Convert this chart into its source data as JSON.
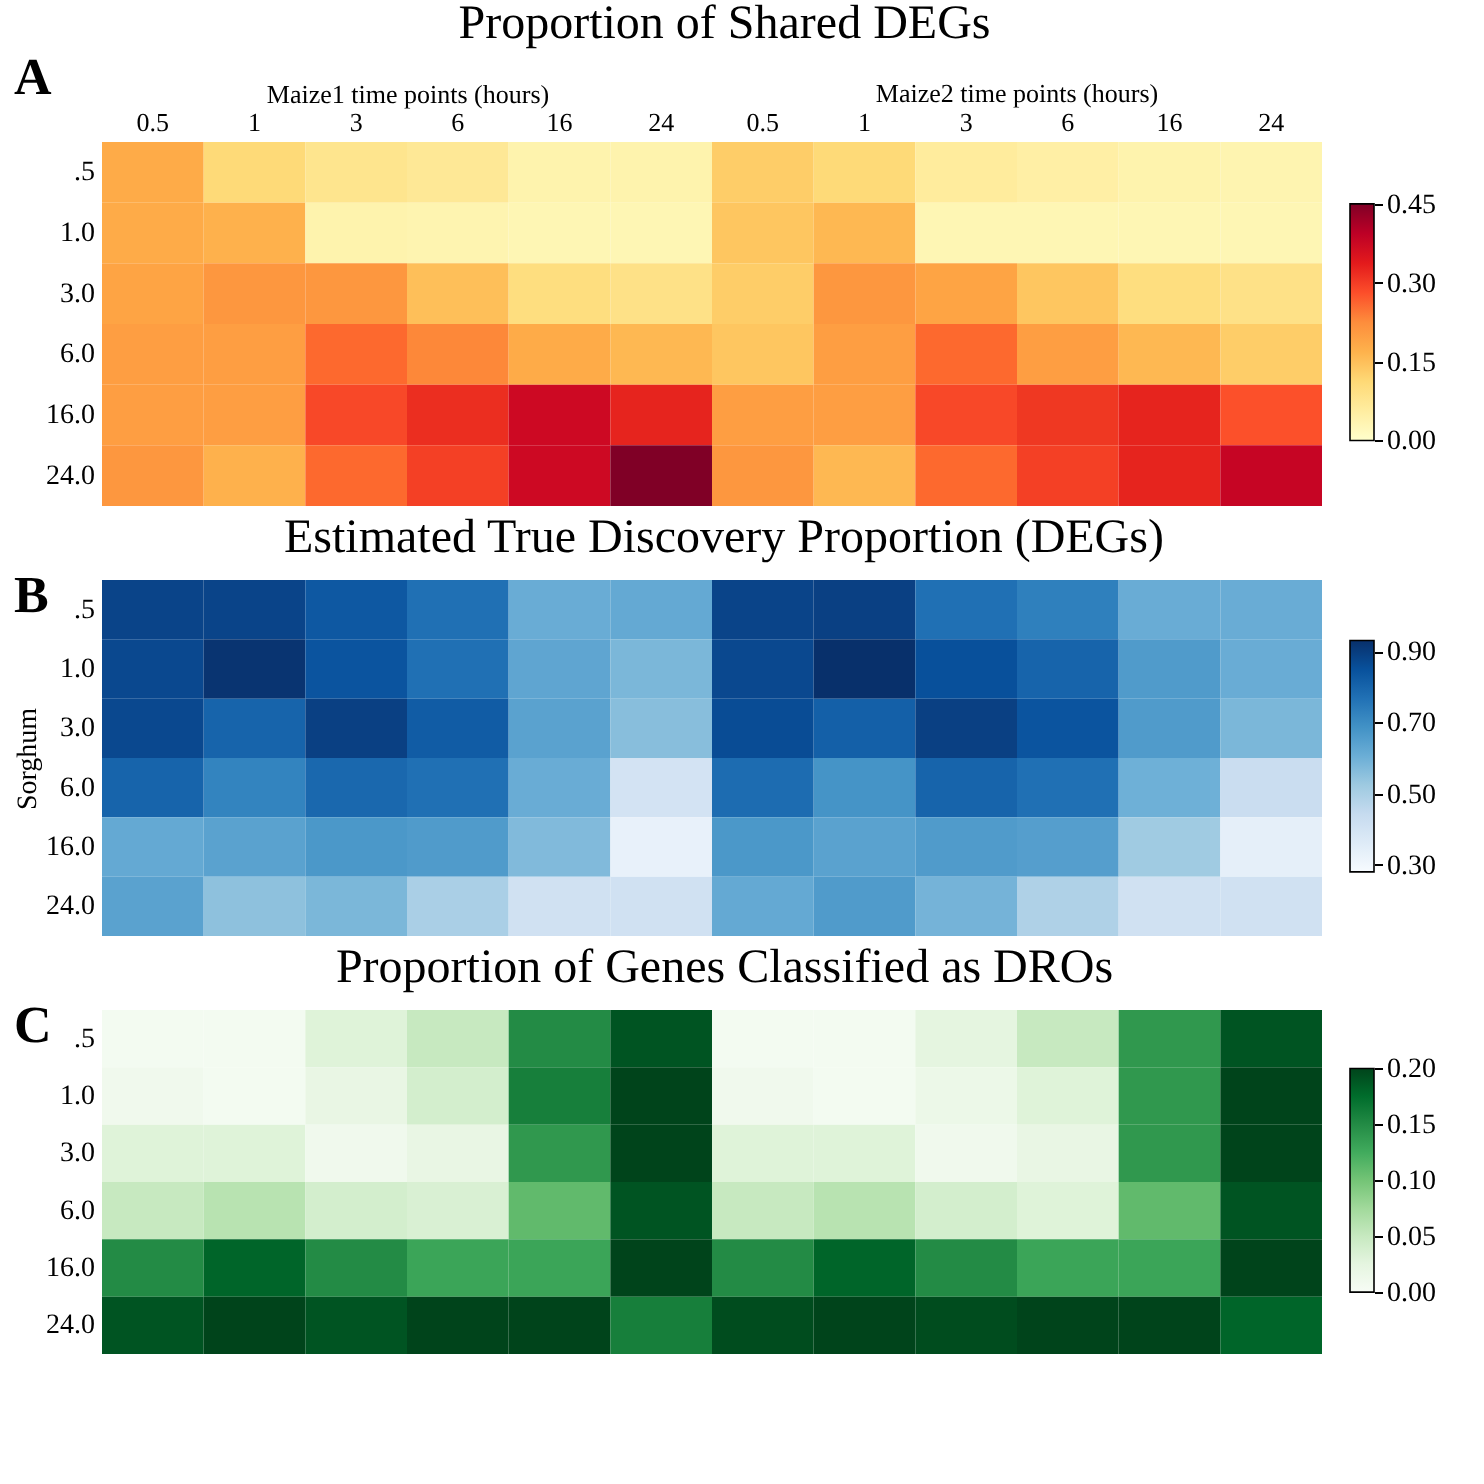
{
  "chart_data": [
    {
      "type": "heatmap",
      "title": "Proportion of Shared DEGs",
      "xlabel": "Maize1 time points (hours)",
      "annotations": [
        "A",
        "Maize2 time points (hours)"
      ],
      "categories": [
        "0.5",
        "1",
        "3",
        "6",
        "16",
        "24",
        "0.5",
        "1",
        "3",
        "6",
        "16",
        "24"
      ],
      "y_categories": [
        ".5",
        "1.0",
        "3.0",
        "6.0",
        "16.0",
        "24.0"
      ],
      "cells": [
        [
          0.18,
          0.11,
          0.08,
          0.07,
          0.04,
          0.04,
          0.13,
          0.11,
          0.06,
          0.05,
          0.04,
          0.035
        ],
        [
          0.18,
          0.17,
          0.04,
          0.035,
          0.03,
          0.03,
          0.14,
          0.16,
          0.03,
          0.03,
          0.03,
          0.03
        ],
        [
          0.19,
          0.21,
          0.21,
          0.15,
          0.1,
          0.09,
          0.13,
          0.21,
          0.19,
          0.14,
          0.1,
          0.09
        ],
        [
          0.2,
          0.2,
          0.26,
          0.23,
          0.18,
          0.16,
          0.14,
          0.2,
          0.26,
          0.2,
          0.16,
          0.13
        ],
        [
          0.2,
          0.2,
          0.29,
          0.32,
          0.37,
          0.33,
          0.2,
          0.2,
          0.29,
          0.31,
          0.33,
          0.28
        ],
        [
          0.21,
          0.17,
          0.26,
          0.3,
          0.37,
          0.45,
          0.21,
          0.16,
          0.26,
          0.3,
          0.33,
          0.38
        ]
      ],
      "clim": [
        0,
        0.45
      ],
      "cticks": [
        {
          "value": 0,
          "label": "0.00"
        },
        {
          "value": 0.15,
          "label": "0.15"
        },
        {
          "value": 0.3,
          "label": "0.30"
        },
        {
          "value": 0.45,
          "label": "0.45"
        }
      ],
      "colors": [
        "#ffffcc",
        "#ffeda0",
        "#fed976",
        "#feb24c",
        "#fd8d3c",
        "#fc4e2a",
        "#e31a1c",
        "#bd0026",
        "#800026"
      ]
    },
    {
      "type": "heatmap",
      "title": "Estimated True Discovery Proportion (DEGs)",
      "ylabel": "Sorghum",
      "annotations": [
        "B"
      ],
      "tick_labels": "y",
      "categories": [
        "0.5",
        "1",
        "3",
        "6",
        "16",
        "24",
        "0.5",
        "1",
        "3",
        "6",
        "16",
        "24"
      ],
      "y_categories": [
        ".5",
        "1.0",
        "3.0",
        "6.0",
        "16.0",
        "24.0"
      ],
      "cells": [
        [
          0.88,
          0.88,
          0.83,
          0.77,
          0.61,
          0.62,
          0.88,
          0.89,
          0.77,
          0.73,
          0.61,
          0.61
        ],
        [
          0.87,
          0.92,
          0.84,
          0.77,
          0.63,
          0.58,
          0.87,
          0.93,
          0.85,
          0.8,
          0.66,
          0.61
        ],
        [
          0.87,
          0.8,
          0.89,
          0.82,
          0.64,
          0.56,
          0.86,
          0.81,
          0.89,
          0.84,
          0.66,
          0.58
        ],
        [
          0.8,
          0.72,
          0.79,
          0.77,
          0.61,
          0.4,
          0.78,
          0.68,
          0.8,
          0.77,
          0.6,
          0.43
        ],
        [
          0.62,
          0.64,
          0.67,
          0.66,
          0.57,
          0.33,
          0.67,
          0.64,
          0.66,
          0.65,
          0.52,
          0.34
        ],
        [
          0.64,
          0.55,
          0.58,
          0.5,
          0.41,
          0.41,
          0.62,
          0.66,
          0.59,
          0.49,
          0.41,
          0.41
        ]
      ],
      "clim": [
        0.28,
        0.93
      ],
      "cticks": [
        {
          "value": 0.3,
          "label": "0.30"
        },
        {
          "value": 0.5,
          "label": "0.50"
        },
        {
          "value": 0.7,
          "label": "0.70"
        },
        {
          "value": 0.9,
          "label": "0.90"
        }
      ],
      "colors": [
        "#f7fbff",
        "#deebf7",
        "#c6dbef",
        "#9ecae1",
        "#6baed6",
        "#4292c6",
        "#2171b5",
        "#08519c",
        "#08306b"
      ]
    },
    {
      "type": "heatmap",
      "title": "Proportion of Genes Classified as DROs",
      "annotations": [
        "C"
      ],
      "tick_labels": "y",
      "categories": [
        "0.5",
        "1",
        "3",
        "6",
        "16",
        "24",
        "0.5",
        "1",
        "3",
        "6",
        "16",
        "24"
      ],
      "y_categories": [
        ".5",
        "1.0",
        "3.0",
        "6.0",
        "16.0",
        "24.0"
      ],
      "cells": [
        [
          0.005,
          0.005,
          0.03,
          0.05,
          0.15,
          0.19,
          0.005,
          0.005,
          0.025,
          0.05,
          0.14,
          0.19
        ],
        [
          0.01,
          0.005,
          0.02,
          0.04,
          0.16,
          0.2,
          0.01,
          0.005,
          0.015,
          0.03,
          0.14,
          0.2
        ],
        [
          0.03,
          0.03,
          0.01,
          0.02,
          0.14,
          0.2,
          0.03,
          0.03,
          0.01,
          0.02,
          0.14,
          0.2
        ],
        [
          0.05,
          0.06,
          0.04,
          0.035,
          0.11,
          0.19,
          0.05,
          0.06,
          0.04,
          0.03,
          0.11,
          0.19
        ],
        [
          0.15,
          0.18,
          0.15,
          0.13,
          0.13,
          0.2,
          0.15,
          0.18,
          0.15,
          0.13,
          0.13,
          0.2
        ],
        [
          0.19,
          0.2,
          0.19,
          0.2,
          0.2,
          0.16,
          0.195,
          0.2,
          0.195,
          0.2,
          0.2,
          0.18
        ]
      ],
      "clim": [
        0,
        0.2
      ],
      "cticks": [
        {
          "value": 0,
          "label": "0.00"
        },
        {
          "value": 0.05,
          "label": "0.05"
        },
        {
          "value": 0.1,
          "label": "0.10"
        },
        {
          "value": 0.15,
          "label": "0.15"
        },
        {
          "value": 0.2,
          "label": "0.20"
        }
      ],
      "colors": [
        "#f7fcf5",
        "#e5f5e0",
        "#c7e9c0",
        "#a1d99b",
        "#74c476",
        "#41ab5d",
        "#238b45",
        "#006d2c",
        "#00441b"
      ]
    }
  ]
}
